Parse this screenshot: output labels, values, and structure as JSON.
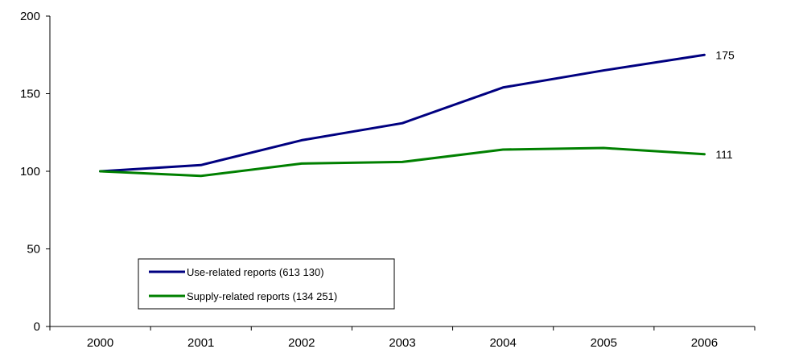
{
  "chart_data": {
    "type": "line",
    "categories": [
      "2000",
      "2001",
      "2002",
      "2003",
      "2004",
      "2005",
      "2006"
    ],
    "ylim": [
      0,
      200
    ],
    "yticks": [
      0,
      50,
      100,
      150,
      200
    ],
    "ytick_labels": [
      "0",
      "50",
      "100",
      "150",
      "200"
    ],
    "grid": false,
    "legend_placement": "bottom-left",
    "series": [
      {
        "name": "Use-related reports (613 130)",
        "values": [
          100,
          104,
          120,
          131,
          154,
          165,
          175
        ],
        "end_label": "175",
        "color": "#000080"
      },
      {
        "name": "Supply-related reports (134 251)",
        "values": [
          100,
          97,
          105,
          106,
          114,
          115,
          111
        ],
        "end_label": "111",
        "color": "#008000"
      }
    ]
  }
}
